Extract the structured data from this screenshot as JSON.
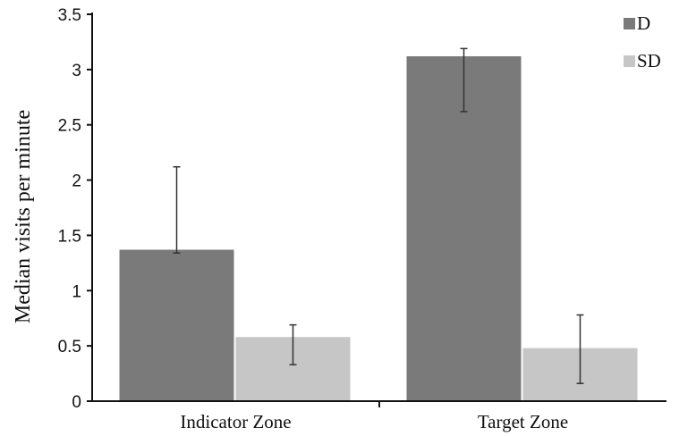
{
  "chart_data": {
    "type": "bar",
    "title": "",
    "xlabel": "",
    "ylabel": "Median visits per minute",
    "ylim": [
      0,
      3.5
    ],
    "yticks": [
      "0",
      "0.5",
      "1",
      "1.5",
      "2",
      "2.5",
      "3",
      "3.5"
    ],
    "categories": [
      "Indicator Zone",
      "Target Zone"
    ],
    "series": [
      {
        "name": "D",
        "color": "#7a7a7a",
        "values": [
          1.37,
          3.12
        ],
        "error_low": [
          1.34,
          2.62
        ],
        "error_high": [
          2.12,
          3.19
        ]
      },
      {
        "name": "SD",
        "color": "#c6c6c6",
        "values": [
          0.58,
          0.48
        ],
        "error_low": [
          0.33,
          0.16
        ],
        "error_high": [
          0.69,
          0.78
        ]
      }
    ],
    "legend_position": "top-right",
    "grid": false
  }
}
